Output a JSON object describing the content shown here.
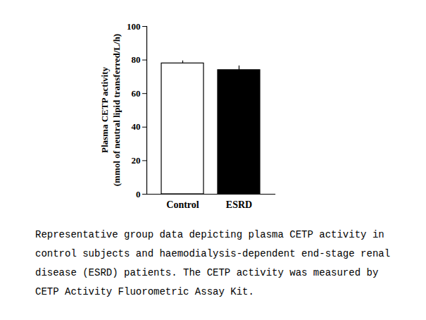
{
  "chart_data": {
    "type": "bar",
    "categories": [
      "Control",
      "ESRD"
    ],
    "values": [
      78,
      74
    ],
    "errors": [
      1.5,
      2.5
    ],
    "colors": [
      "#ffffff",
      "#000000"
    ],
    "ylabel": [
      "Plasma CETP activity",
      "(mmol of neutral lipid transferred/L/h)"
    ],
    "ylim": [
      0,
      100
    ],
    "yticks": [
      0,
      20,
      40,
      60,
      80,
      100
    ],
    "grid": false,
    "caption": "Representative group data depicting plasma CETP activity in control subjects and haemodialysis-dependent end-stage renal disease (ESRD) patients. The CETP activity was measured by CETP Activity Fluorometric Assay Kit."
  }
}
